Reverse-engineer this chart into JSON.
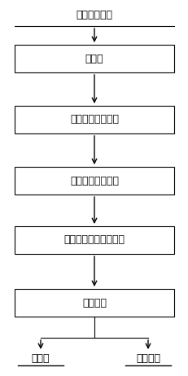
{
  "title": "钛硅合金物料",
  "steps": [
    "预处理",
    "电磁感应加热熔化",
    "真空挥发精炼除杂",
    "电磁定向凝固强化分离",
    "切割分离"
  ],
  "outputs_left": "高纯硅",
  "outputs_right": "钛硅合金",
  "bg_color": "#ffffff",
  "box_edge_color": "#000000",
  "box_face_color": "#ffffff",
  "text_color": "#000000",
  "arrow_color": "#000000",
  "font_size": 9,
  "title_font_size": 9
}
